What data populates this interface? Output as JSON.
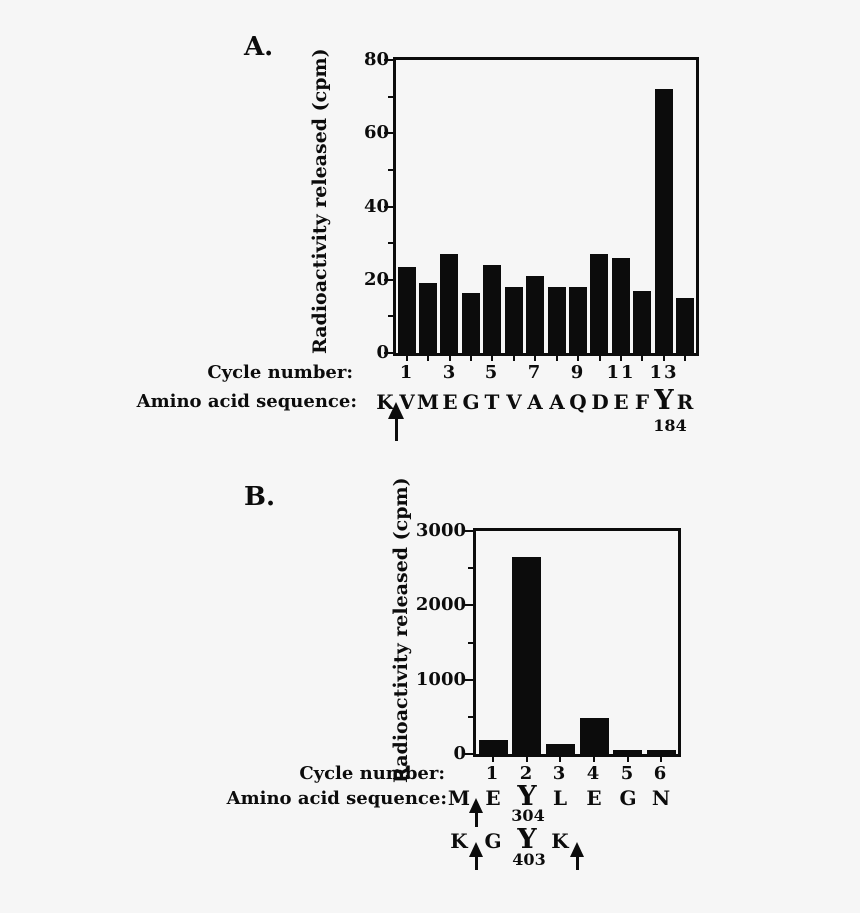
{
  "figure": {
    "background_color": "#f6f6f6",
    "ink_color": "#0c0c0c"
  },
  "chart_data": [
    {
      "type": "bar",
      "panel_label": "A.",
      "ylabel": "Radioactivity released (cpm)",
      "cycle_row_label": "Cycle number:",
      "sequence_row_label": "Amino acid sequence:",
      "categories": [
        1,
        2,
        3,
        4,
        5,
        6,
        7,
        8,
        9,
        10,
        11,
        12,
        13,
        14
      ],
      "values": [
        23.5,
        19,
        27,
        16.5,
        24,
        18,
        21,
        18,
        18,
        27,
        26,
        17,
        72,
        15
      ],
      "ylim": [
        0,
        80
      ],
      "yticks": [
        0,
        20,
        40,
        60,
        80
      ],
      "ytick_labels": [
        "0",
        "20",
        "40",
        "60",
        "80"
      ],
      "yticks_minor": [
        10,
        30,
        50,
        70
      ],
      "xticks_labeled": [
        1,
        3,
        5,
        7,
        9,
        11,
        13
      ],
      "bar_color": "#0c0c0c",
      "grid": false,
      "sequence": {
        "letters": [
          "K",
          "V",
          "M",
          "E",
          "G",
          "T",
          "V",
          "A",
          "A",
          "Q",
          "D",
          "E",
          "F",
          "Y",
          "R"
        ],
        "big_index": 13,
        "residue_number": "184",
        "arrows_after": [
          0
        ]
      }
    },
    {
      "type": "bar",
      "panel_label": "B.",
      "ylabel": "Radioactivity released (cpm)",
      "cycle_row_label": "Cycle number:",
      "sequence_row_label": "Amino acid sequence:",
      "categories": [
        1,
        2,
        3,
        4,
        5,
        6
      ],
      "values": [
        190,
        2650,
        140,
        490,
        60,
        60
      ],
      "ylim": [
        0,
        3000
      ],
      "yticks": [
        0,
        1000,
        2000,
        3000
      ],
      "ytick_labels": [
        "0",
        "1000",
        "2000",
        "3000"
      ],
      "yticks_minor": [
        500,
        1500,
        2500
      ],
      "xticks_labeled": [
        1,
        2,
        3,
        4,
        5,
        6
      ],
      "bar_color": "#0c0c0c",
      "grid": false,
      "sequence": {
        "letters": [
          "M",
          "E",
          "Y",
          "L",
          "E",
          "G",
          "N"
        ],
        "big_index": 2,
        "residue_number": "304",
        "arrows_after": [
          0
        ]
      },
      "sequence2": {
        "letters": [
          "K",
          "G",
          "Y",
          "K"
        ],
        "big_index": 2,
        "residue_number": "403",
        "arrows_after": [
          0,
          3
        ]
      }
    }
  ]
}
